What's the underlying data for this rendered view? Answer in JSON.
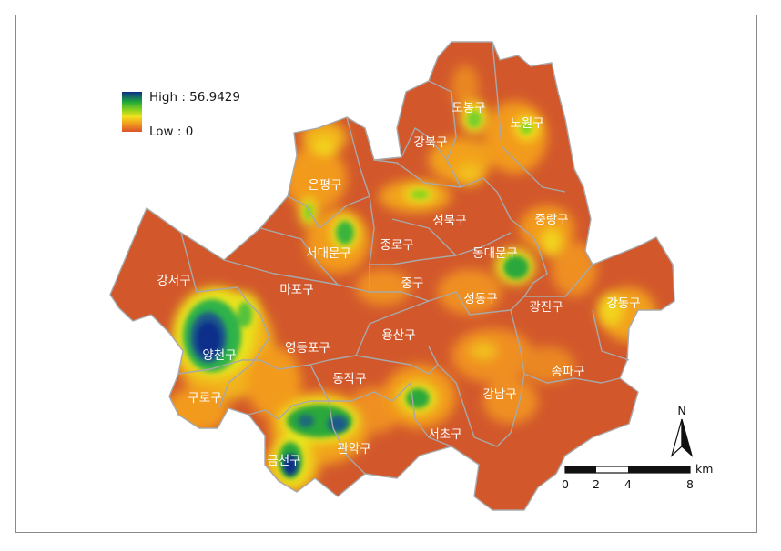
{
  "legend": {
    "high_label": "High : 56.9429",
    "low_label": "Low : 0",
    "colors": [
      "#0b2f8a",
      "#1fa83a",
      "#8ad21e",
      "#f2e21c",
      "#f29a1e",
      "#d9532a"
    ]
  },
  "map": {
    "base_color": "#d2582c",
    "boundary_color": "#a8a8a8",
    "districts": [
      {
        "id": "dobong",
        "label": "도봉구"
      },
      {
        "id": "nowon",
        "label": "노원구"
      },
      {
        "id": "gangbuk",
        "label": "강북구"
      },
      {
        "id": "eunpyeong",
        "label": "은평구"
      },
      {
        "id": "seongbuk",
        "label": "성북구"
      },
      {
        "id": "jungnang",
        "label": "중랑구"
      },
      {
        "id": "seodaemun",
        "label": "서대문구"
      },
      {
        "id": "jongno",
        "label": "종로구"
      },
      {
        "id": "dongdaemun",
        "label": "동대문구"
      },
      {
        "id": "gangseo",
        "label": "강서구"
      },
      {
        "id": "mapo",
        "label": "마포구"
      },
      {
        "id": "jung",
        "label": "중구"
      },
      {
        "id": "seongdong",
        "label": "성동구"
      },
      {
        "id": "gwangjin",
        "label": "광진구"
      },
      {
        "id": "gangdong",
        "label": "강동구"
      },
      {
        "id": "yangcheon",
        "label": "양천구"
      },
      {
        "id": "yeongdeungpo",
        "label": "영등포구"
      },
      {
        "id": "yongsan",
        "label": "용산구"
      },
      {
        "id": "songpa",
        "label": "송파구"
      },
      {
        "id": "dongjak",
        "label": "동작구"
      },
      {
        "id": "guro",
        "label": "구로구"
      },
      {
        "id": "gangnam",
        "label": "강남구"
      },
      {
        "id": "gwanak",
        "label": "관악구"
      },
      {
        "id": "seocho",
        "label": "서초구"
      },
      {
        "id": "geumcheon",
        "label": "금천구"
      }
    ]
  },
  "north_arrow": {
    "label": "N"
  },
  "scale_bar": {
    "ticks": [
      "0",
      "2",
      "4",
      "8"
    ],
    "unit": "km"
  }
}
